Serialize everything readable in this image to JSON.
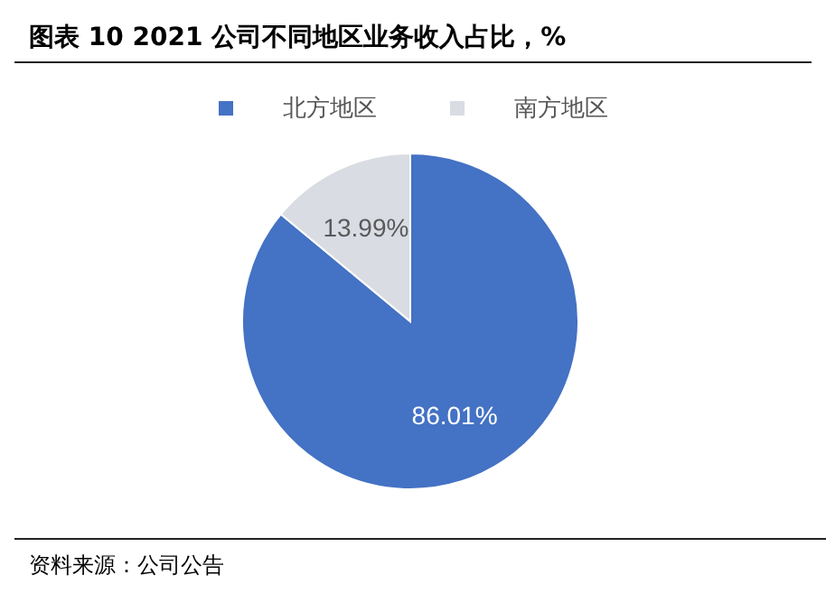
{
  "chart_data": {
    "type": "pie",
    "title": "图表 10 2021 公司不同地区业务收入占比，%",
    "categories": [
      "北方地区",
      "南方地区"
    ],
    "values": [
      86.01,
      13.99
    ],
    "colors": [
      "#4472c4",
      "#d9dce3"
    ],
    "value_labels": [
      "86.01%",
      "13.99%"
    ],
    "legend": "top",
    "annotations": [
      "资料来源：公司公告"
    ]
  }
}
